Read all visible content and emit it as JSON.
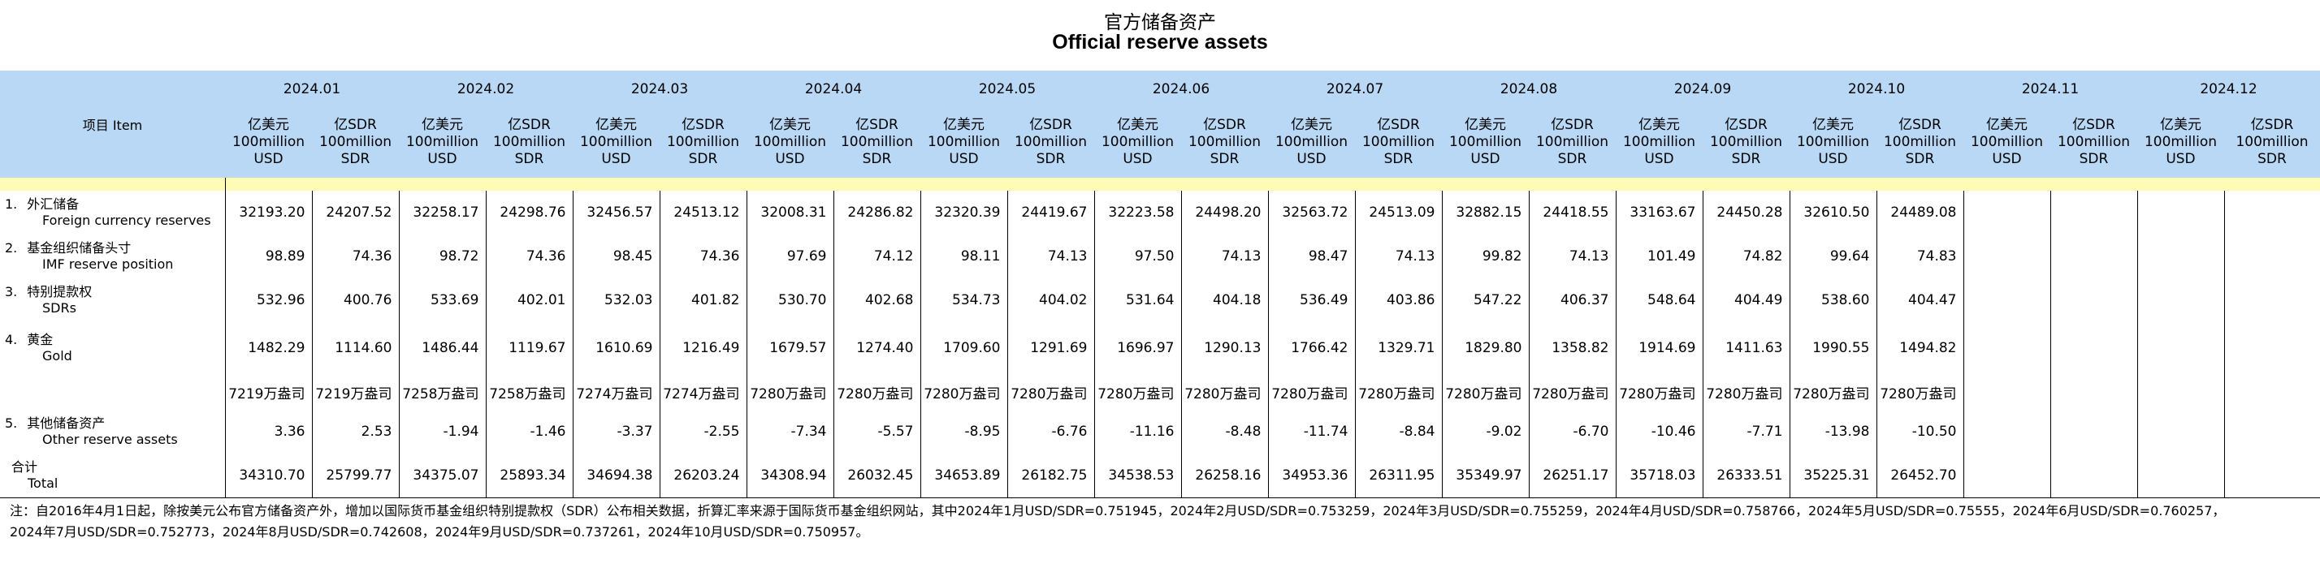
{
  "title_cn": "官方储备资产",
  "title_en": "Official reserve assets",
  "item_header": "项目  Item",
  "months": [
    "2024.01",
    "2024.02",
    "2024.03",
    "2024.04",
    "2024.05",
    "2024.06",
    "2024.07",
    "2024.08",
    "2024.09",
    "2024.10",
    "2024.11",
    "2024.12"
  ],
  "units": {
    "usd": [
      "亿美元",
      "100million",
      "USD"
    ],
    "sdr": [
      "亿SDR",
      "100million",
      "SDR"
    ]
  },
  "rows": [
    {
      "num": "1.",
      "cn": "外汇储备",
      "en": "Foreign currency reserves",
      "values": [
        "32193.20",
        "24207.52",
        "32258.17",
        "24298.76",
        "32456.57",
        "24513.12",
        "32008.31",
        "24286.82",
        "32320.39",
        "24419.67",
        "32223.58",
        "24498.20",
        "32563.72",
        "24513.09",
        "32882.15",
        "24418.55",
        "33163.67",
        "24450.28",
        "32610.50",
        "24489.08",
        "",
        "",
        "",
        ""
      ]
    },
    {
      "num": "2.",
      "cn": "基金组织储备头寸",
      "en": "IMF reserve position",
      "values": [
        "98.89",
        "74.36",
        "98.72",
        "74.36",
        "98.45",
        "74.36",
        "97.69",
        "74.12",
        "98.11",
        "74.13",
        "97.50",
        "74.13",
        "98.47",
        "74.13",
        "99.82",
        "74.13",
        "101.49",
        "74.82",
        "99.64",
        "74.83",
        "",
        "",
        "",
        ""
      ]
    },
    {
      "num": "3.",
      "cn": "特别提款权",
      "en": "SDRs",
      "values": [
        "532.96",
        "400.76",
        "533.69",
        "402.01",
        "532.03",
        "401.82",
        "530.70",
        "402.68",
        "534.73",
        "404.02",
        "531.64",
        "404.18",
        "536.49",
        "403.86",
        "547.22",
        "406.37",
        "548.64",
        "404.49",
        "538.60",
        "404.47",
        "",
        "",
        "",
        ""
      ]
    },
    {
      "num": "4.",
      "cn": "黄金",
      "en": "Gold",
      "values": [
        "1482.29",
        "1114.60",
        "1486.44",
        "1119.67",
        "1610.69",
        "1216.49",
        "1679.57",
        "1274.40",
        "1709.60",
        "1291.69",
        "1696.97",
        "1290.13",
        "1766.42",
        "1329.71",
        "1829.80",
        "1358.82",
        "1914.69",
        "1411.63",
        "1990.55",
        "1494.82",
        "",
        "",
        "",
        ""
      ]
    },
    {
      "num": "",
      "cn": "",
      "en": "",
      "values": [
        "7219万盎司",
        "7219万盎司",
        "7258万盎司",
        "7258万盎司",
        "7274万盎司",
        "7274万盎司",
        "7280万盎司",
        "7280万盎司",
        "7280万盎司",
        "7280万盎司",
        "7280万盎司",
        "7280万盎司",
        "7280万盎司",
        "7280万盎司",
        "7280万盎司",
        "7280万盎司",
        "7280万盎司",
        "7280万盎司",
        "7280万盎司",
        "7280万盎司",
        "",
        "",
        "",
        ""
      ]
    },
    {
      "num": "5.",
      "cn": "其他储备资产",
      "en": "Other reserve assets",
      "values": [
        "3.36",
        "2.53",
        "-1.94",
        "-1.46",
        "-3.37",
        "-2.55",
        "-7.34",
        "-5.57",
        "-8.95",
        "-6.76",
        "-11.16",
        "-8.48",
        "-11.74",
        "-8.84",
        "-9.02",
        "-6.70",
        "-10.46",
        "-7.71",
        "-13.98",
        "-10.50",
        "",
        "",
        "",
        ""
      ]
    },
    {
      "num": "",
      "cn": "合计",
      "en": "Total",
      "values": [
        "34310.70",
        "25799.77",
        "34375.07",
        "25893.34",
        "34694.38",
        "26203.24",
        "34308.94",
        "26032.45",
        "34653.89",
        "26182.75",
        "34538.53",
        "26258.16",
        "34953.36",
        "26311.95",
        "35349.97",
        "26251.17",
        "35718.03",
        "26333.51",
        "35225.31",
        "26452.70",
        "",
        "",
        "",
        ""
      ]
    }
  ],
  "note_line1": "注：自2016年4月1日起，除按美元公布官方储备资产外，增加以国际货币基金组织特别提款权（SDR）公布相关数据，折算汇率来源于国际货币基金组织网站，其中2024年1月USD/SDR=0.751945，2024年2月USD/SDR=0.753259，2024年3月USD/SDR=0.755259，2024年4月USD/SDR=0.758766，2024年5月USD/SDR=0.75555，2024年6月USD/SDR=0.760257，",
  "note_line2": "2024年7月USD/SDR=0.752773，2024年8月USD/SDR=0.742608，2024年9月USD/SDR=0.737261，2024年10月USD/SDR=0.750957。"
}
